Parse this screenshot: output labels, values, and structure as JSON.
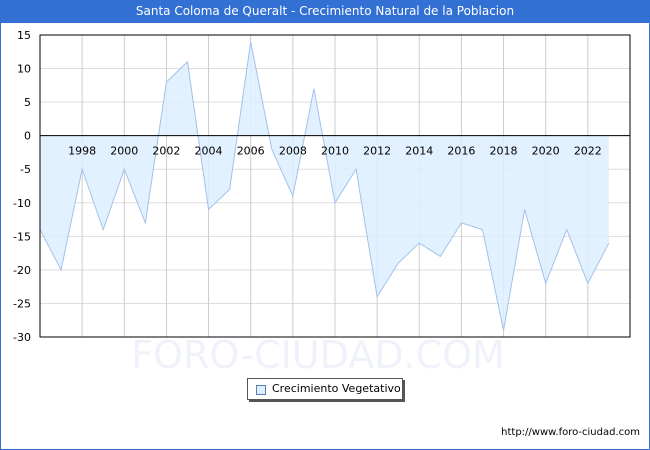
{
  "header": {
    "title": "Santa Coloma de Queralt - Crecimiento Natural de la Poblacion"
  },
  "legend": {
    "label": "Crecimiento Vegetativo",
    "swatch_color": "#ddeeff"
  },
  "footer": {
    "url": "http://www.foro-ciudad.com"
  },
  "watermark": "FORO-CIUDAD.COM",
  "colors": {
    "title_bg": "#3370d4",
    "area_fill": "#ddeeff",
    "line": "#a3c2ea"
  },
  "chart_data": {
    "type": "area",
    "title": "Santa Coloma de Queralt - Crecimiento Natural de la Poblacion",
    "xlabel": "",
    "ylabel": "",
    "x": [
      1996,
      1997,
      1998,
      1999,
      2000,
      2001,
      2002,
      2003,
      2004,
      2005,
      2006,
      2007,
      2008,
      2009,
      2010,
      2011,
      2012,
      2013,
      2014,
      2015,
      2016,
      2017,
      2018,
      2019,
      2020,
      2021,
      2022,
      2023
    ],
    "series": [
      {
        "name": "Crecimiento Vegetativo",
        "values": [
          -14,
          -20,
          -5,
          -14,
          -5,
          -13,
          8,
          11,
          -11,
          -8,
          14,
          -2,
          -9,
          7,
          -10,
          -5,
          -24,
          -19,
          -16,
          -18,
          -13,
          -14,
          -29,
          -11,
          -22,
          -14,
          -22,
          -16
        ]
      }
    ],
    "x_tick_labels": [
      "1998",
      "2000",
      "2002",
      "2004",
      "2006",
      "2008",
      "2010",
      "2012",
      "2014",
      "2016",
      "2018",
      "2020",
      "2022"
    ],
    "y_tick_labels": [
      "15",
      "10",
      "5",
      "0",
      "-5",
      "-10",
      "-15",
      "-20",
      "-25",
      "-30"
    ],
    "ylim": [
      -30,
      15
    ],
    "grid": true,
    "legend_position": "bottom"
  }
}
